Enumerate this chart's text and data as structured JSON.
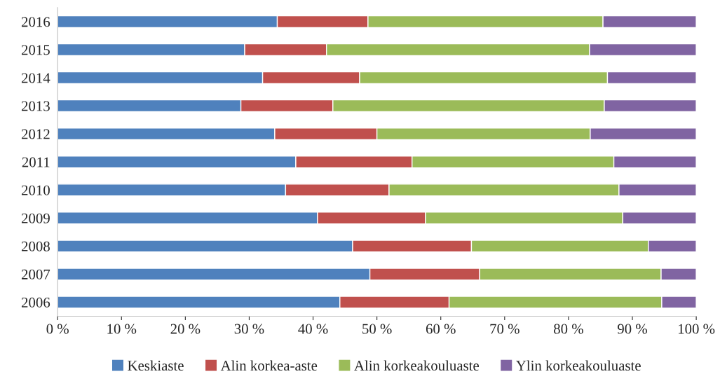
{
  "chart_data": {
    "type": "bar",
    "orientation": "horizontal",
    "stacked": true,
    "legend": "bottom",
    "grid": false,
    "categories": [
      "2016",
      "2015",
      "2014",
      "2013",
      "2012",
      "2011",
      "2010",
      "2009",
      "2008",
      "2007",
      "2006"
    ],
    "xlim": [
      0,
      100
    ],
    "xticks": [
      {
        "value": 0,
        "label": "0 %"
      },
      {
        "value": 10,
        "label": "10 %"
      },
      {
        "value": 20,
        "label": "20 %"
      },
      {
        "value": 30,
        "label": "30 %"
      },
      {
        "value": 40,
        "label": "40 %"
      },
      {
        "value": 50,
        "label": "50 %"
      },
      {
        "value": 60,
        "label": "60 %"
      },
      {
        "value": 70,
        "label": "70 %"
      },
      {
        "value": 80,
        "label": "80 %"
      },
      {
        "value": 90,
        "label": "90 %"
      },
      {
        "value": 100,
        "label": "100 %"
      }
    ],
    "series": [
      {
        "name": "Keskiaste",
        "color": "#4f81bd",
        "values": [
          34.4,
          29.3,
          32.1,
          28.7,
          34.0,
          37.3,
          35.7,
          40.7,
          46.2,
          48.9,
          44.2
        ]
      },
      {
        "name": "Alin korkea-aste",
        "color": "#c0504d",
        "values": [
          14.2,
          12.8,
          15.2,
          14.4,
          16.0,
          18.2,
          16.2,
          16.9,
          18.6,
          17.2,
          17.1
        ]
      },
      {
        "name": "Alin korkeakouluaste",
        "color": "#9bbb59",
        "values": [
          36.8,
          41.2,
          38.8,
          42.5,
          33.4,
          31.6,
          36.0,
          30.9,
          27.7,
          28.4,
          33.3
        ]
      },
      {
        "name": "Ylin korkeakouluaste",
        "color": "#8064a2",
        "values": [
          14.6,
          16.7,
          13.9,
          14.4,
          16.6,
          12.9,
          12.1,
          11.5,
          7.5,
          5.5,
          5.4
        ]
      }
    ]
  }
}
